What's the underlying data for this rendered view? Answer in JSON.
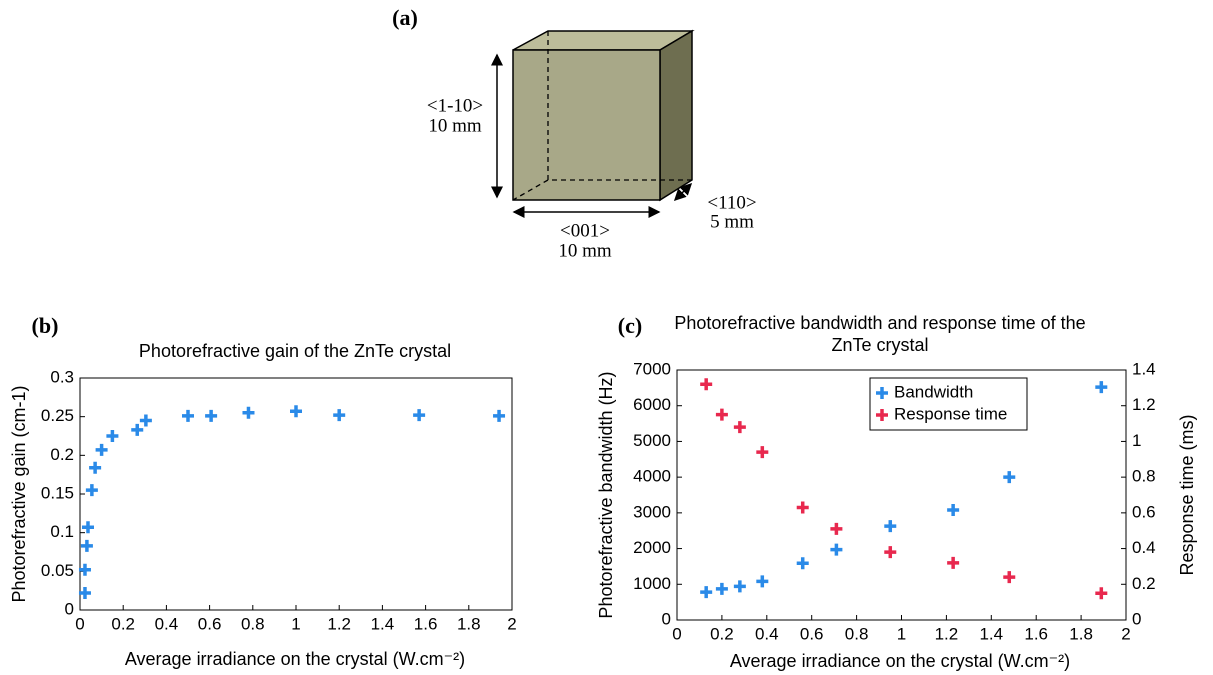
{
  "panels": {
    "a": "(a)",
    "b": "(b)",
    "c": "(c)"
  },
  "diagram": {
    "vertical_axis": "<1-10>",
    "vertical_size": "10 mm",
    "horizontal_axis": "<001>",
    "horizontal_size": "10 mm",
    "depth_axis": "<110>",
    "depth_size": "5 mm"
  },
  "chart_data": [
    {
      "type": "scatter",
      "title": "Photorefractive gain of the ZnTe crystal",
      "x_label": "Average irradiance on the crystal (W.cm⁻²)",
      "y_label": "Photorefractive gain (cm-1)",
      "xlim": [
        0,
        2
      ],
      "xticks": [
        0,
        0.2,
        0.4,
        0.6,
        0.8,
        1,
        1.2,
        1.4,
        1.6,
        1.8,
        2
      ],
      "ylim": [
        0,
        0.3
      ],
      "yticks": [
        0,
        0.05,
        0.1,
        0.15,
        0.2,
        0.25,
        0.3
      ],
      "series": [
        {
          "color": "#2a8ae8",
          "x": [
            0.023,
            0.023,
            0.032,
            0.037,
            0.055,
            0.07,
            0.1,
            0.15,
            0.265,
            0.305,
            0.5,
            0.607,
            0.78,
            1.0,
            1.2,
            1.57,
            1.94
          ],
          "values": [
            0.022,
            0.052,
            0.083,
            0.107,
            0.155,
            0.184,
            0.207,
            0.225,
            0.233,
            0.245,
            0.251,
            0.251,
            0.255,
            0.257,
            0.252,
            0.252,
            0.251
          ]
        }
      ]
    },
    {
      "type": "scatter",
      "title": "Photorefractive bandwidth and response time of the ZnTe crystal",
      "x_label": "Average irradiance on the crystal (W.cm⁻²)",
      "y_label": "Photorefractive bandwidth (Hz)",
      "y2_label": "Response time (ms)",
      "xlim": [
        0,
        2
      ],
      "xticks": [
        0,
        0.2,
        0.4,
        0.6,
        0.8,
        1,
        1.2,
        1.4,
        1.6,
        1.8,
        2
      ],
      "ylim": [
        0,
        7000
      ],
      "yticks": [
        0,
        1000,
        2000,
        3000,
        4000,
        5000,
        6000,
        7000
      ],
      "y2lim": [
        0,
        1.4
      ],
      "y2ticks": [
        0,
        0.2,
        0.4,
        0.6,
        0.8,
        1,
        1.2,
        1.4
      ],
      "series": [
        {
          "name": "Bandwidth",
          "color": "#2a8ae8",
          "x": [
            0.13,
            0.2,
            0.28,
            0.38,
            0.56,
            0.71,
            0.95,
            1.23,
            1.48,
            1.89
          ],
          "values": [
            780,
            870,
            940,
            1080,
            1590,
            1970,
            2630,
            3080,
            4000,
            6520
          ]
        },
        {
          "name": "Response time",
          "color": "#e8284e",
          "axis": "y2",
          "x": [
            0.13,
            0.2,
            0.28,
            0.38,
            0.56,
            0.71,
            0.95,
            1.23,
            1.48,
            1.89
          ],
          "values": [
            1.32,
            1.15,
            1.08,
            0.94,
            0.63,
            0.51,
            0.38,
            0.32,
            0.24,
            0.15
          ]
        }
      ]
    }
  ]
}
